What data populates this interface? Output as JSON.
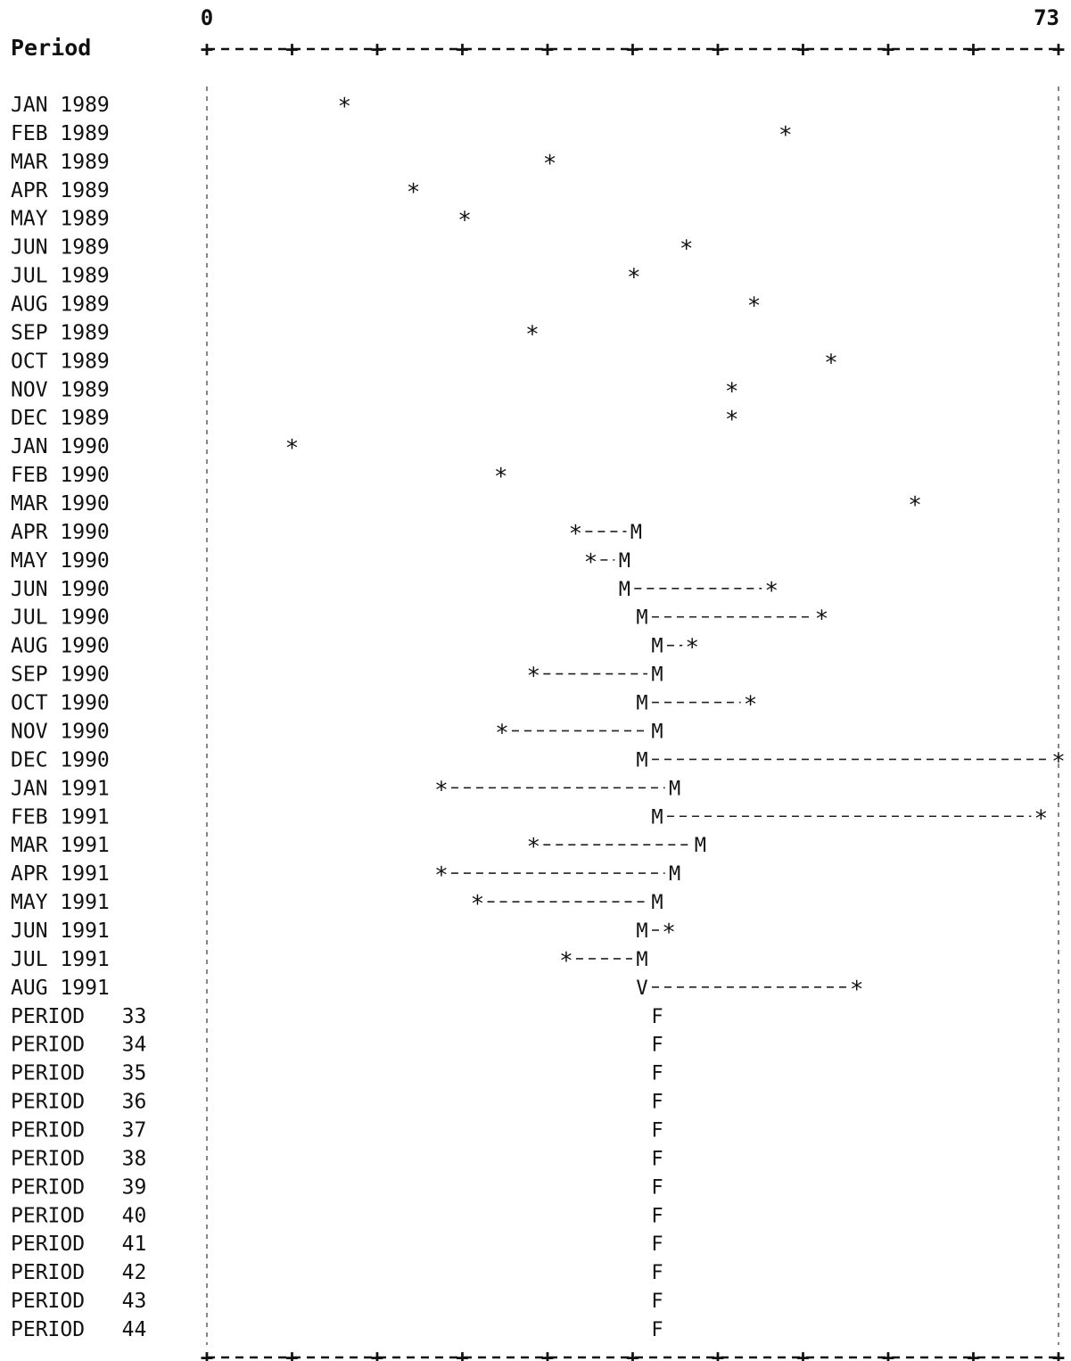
{
  "chart_data": {
    "type": "scatter",
    "style": "ascii-line-printer",
    "axis": {
      "title": "Period",
      "min": 0,
      "max": 73,
      "min_label": "0",
      "max_label": "73",
      "tick_count": 10
    },
    "legend_symbols": {
      "actual": "*",
      "model": "M",
      "forecast": "F",
      "overlap": "V"
    },
    "periods": [
      "JAN 1989",
      "FEB 1989",
      "MAR 1989",
      "APR 1989",
      "MAY 1989",
      "JUN 1989",
      "JUL 1989",
      "AUG 1989",
      "SEP 1989",
      "OCT 1989",
      "NOV 1989",
      "DEC 1989",
      "JAN 1990",
      "FEB 1990",
      "MAR 1990",
      "APR 1990",
      "MAY 1990",
      "JUN 1990",
      "JUL 1990",
      "AUG 1990",
      "SEP 1990",
      "OCT 1990",
      "NOV 1990",
      "DEC 1990",
      "JAN 1991",
      "FEB 1991",
      "MAR 1991",
      "APR 1991",
      "MAY 1991",
      "JUN 1991",
      "JUL 1991",
      "AUG 1991",
      "PERIOD   33",
      "PERIOD   34",
      "PERIOD   35",
      "PERIOD   36",
      "PERIOD   37",
      "PERIOD   38",
      "PERIOD   39",
      "PERIOD   40",
      "PERIOD   41",
      "PERIOD   42",
      "PERIOD   43",
      "PERIOD   44"
    ],
    "series": [
      {
        "symbol": "*",
        "values": [
          11.8,
          49.6,
          29.4,
          17.7,
          22.1,
          41.1,
          36.6,
          46.9,
          27.9,
          53.5,
          45.0,
          45.0,
          7.3,
          25.2,
          60.7,
          31.6,
          32.9,
          48.4,
          52.7,
          41.6,
          28.0,
          46.6,
          25.3,
          73.0,
          20.1,
          71.5,
          28.0,
          20.1,
          23.2,
          39.6,
          30.8,
          55.7,
          null,
          null,
          null,
          null,
          null,
          null,
          null,
          null,
          null,
          null,
          null,
          null
        ]
      },
      {
        "symbol": "M",
        "values": [
          null,
          null,
          null,
          null,
          null,
          null,
          null,
          null,
          null,
          null,
          null,
          null,
          null,
          null,
          null,
          36.8,
          35.8,
          35.8,
          37.3,
          38.6,
          38.6,
          37.3,
          38.6,
          37.3,
          40.1,
          38.6,
          42.3,
          40.1,
          38.6,
          37.3,
          37.3,
          37.3,
          38.6,
          38.6,
          38.6,
          38.6,
          38.6,
          38.6,
          38.6,
          38.6,
          38.6,
          38.6,
          38.6,
          38.6
        ]
      }
    ],
    "row_marker": [
      null,
      null,
      null,
      null,
      null,
      null,
      null,
      null,
      null,
      null,
      null,
      null,
      null,
      null,
      null,
      "M",
      "M",
      "M",
      "M",
      "M",
      "M",
      "M",
      "M",
      "M",
      "M",
      "M",
      "M",
      "M",
      "M",
      "M",
      "M",
      "V",
      "F",
      "F",
      "F",
      "F",
      "F",
      "F",
      "F",
      "F",
      "F",
      "F",
      "F",
      "F"
    ],
    "grid": false
  }
}
